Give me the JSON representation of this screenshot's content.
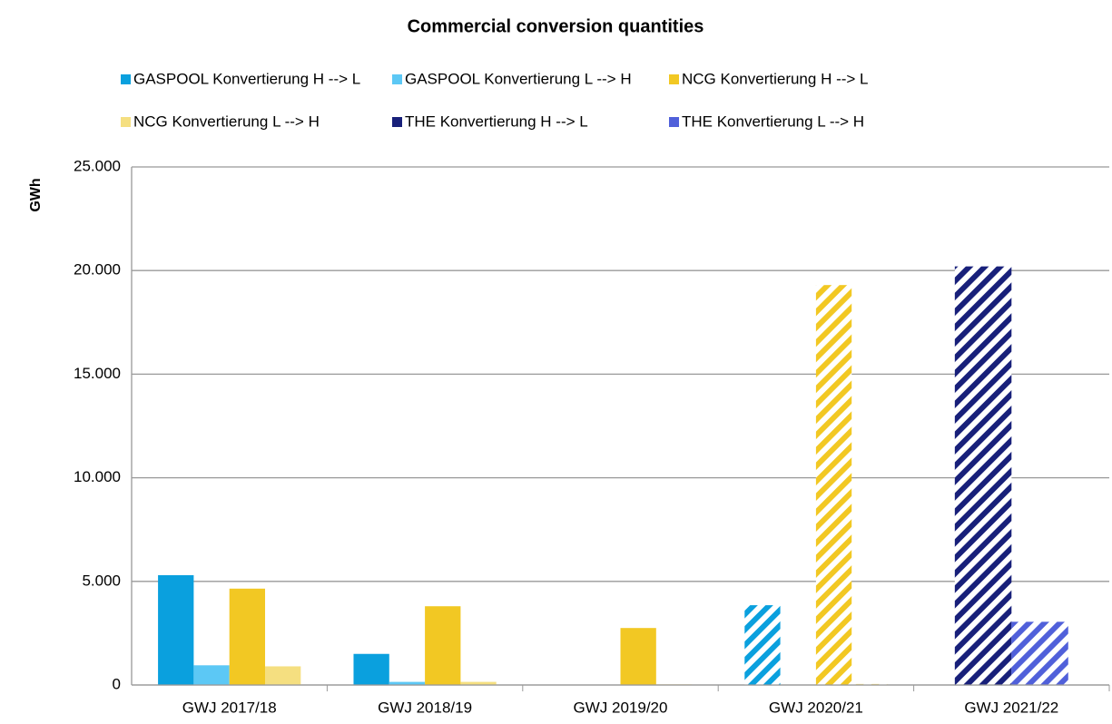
{
  "chart_data": {
    "type": "bar",
    "title": "Commercial conversion quantities",
    "y_label": "GWh",
    "categories": [
      "GWJ 2017/18",
      "GWJ 2018/19",
      "GWJ 2019/20",
      "GWJ 2020/21",
      "GWJ 2021/22"
    ],
    "hatched": [
      false,
      false,
      false,
      true,
      true
    ],
    "series": [
      {
        "name": "GASPOOL Konvertierung H --> L",
        "color": "#0AA0DE",
        "values": [
          5300,
          1500,
          0,
          3850,
          null
        ]
      },
      {
        "name": "GASPOOL Konvertierung L --> H",
        "color": "#5CC8F5",
        "values": [
          950,
          150,
          0,
          0,
          null
        ]
      },
      {
        "name": "NCG Konvertierung H --> L",
        "color": "#F2C823",
        "values": [
          4650,
          3800,
          2750,
          19300,
          null
        ]
      },
      {
        "name": "NCG Konvertierung L --> H",
        "color": "#F5DF80",
        "values": [
          900,
          150,
          30,
          50,
          null
        ]
      },
      {
        "name": "THE Konvertierung H --> L",
        "color": "#18207A",
        "values": [
          null,
          null,
          null,
          null,
          20200
        ]
      },
      {
        "name": "THE Konvertierung L --> H",
        "color": "#5060DA",
        "values": [
          null,
          null,
          null,
          null,
          3050
        ]
      }
    ],
    "ylim": [
      0,
      25000
    ],
    "yticks": [
      0,
      {
        "value": 5000,
        "label": "5.000"
      },
      {
        "value": 10000,
        "label": "10.000"
      },
      {
        "value": 15000,
        "label": "15.000"
      },
      {
        "value": 20000,
        "label": "20.000"
      },
      {
        "value": 25000,
        "label": "25.000"
      }
    ],
    "grid": true,
    "legend": "top"
  }
}
